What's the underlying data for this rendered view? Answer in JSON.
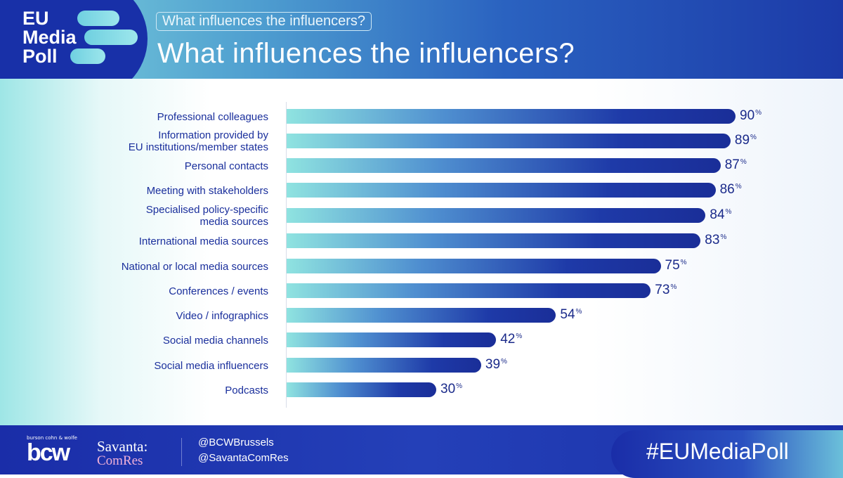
{
  "logo": {
    "lines": [
      "EU",
      "Media",
      "Poll"
    ]
  },
  "header": {
    "subtitle": "What influences the influencers?",
    "title": "What influences the influencers?"
  },
  "chart_data": {
    "type": "bar",
    "orientation": "horizontal",
    "title": "What influences the influencers?",
    "unit": "%",
    "categories": [
      "Professional colleagues",
      "Information provided by\nEU institutions/member states",
      "Personal contacts",
      "Meeting with stakeholders",
      "Specialised policy-specific\nmedia sources",
      "International media sources",
      "National or local media sources",
      "Conferences / events",
      "Video / infographics",
      "Social media channels",
      "Social media influencers",
      "Podcasts"
    ],
    "values": [
      90,
      89,
      87,
      86,
      84,
      83,
      75,
      73,
      54,
      42,
      39,
      30
    ],
    "xlim": [
      0,
      100
    ]
  },
  "footer": {
    "bcw_small": "burson cohn & wolfe",
    "bcw": "bcw",
    "savanta": "Savanta:",
    "comres": "ComRes",
    "handles": [
      "@BCWBrussels",
      "@SavantaComRes"
    ],
    "hashtag": "#EUMediaPoll"
  }
}
